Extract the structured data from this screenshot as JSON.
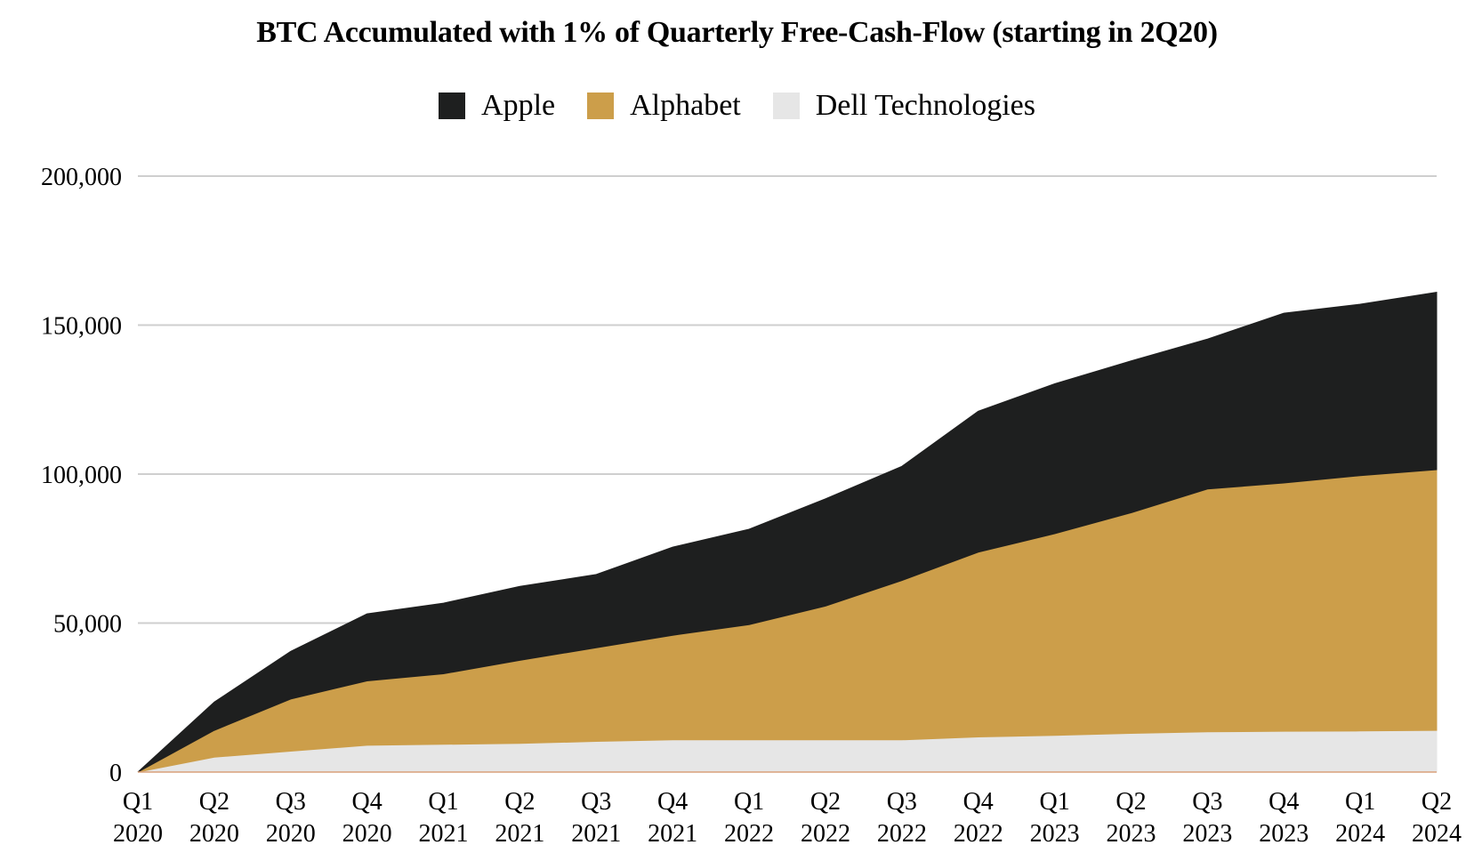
{
  "chart_data": {
    "type": "area",
    "stacked": true,
    "title": "BTC Accumulated with 1% of Quarterly Free-Cash-Flow (starting in 2Q20)",
    "xlabel": "",
    "ylabel": "",
    "ylim": [
      0,
      200000
    ],
    "yticks": [
      0,
      50000,
      100000,
      150000,
      200000
    ],
    "ytick_labels": [
      "0",
      "50,000",
      "100,000",
      "150,000",
      "200,000"
    ],
    "grid": true,
    "legend_position": "top-center",
    "categories": [
      {
        "q": "Q1",
        "year": "2020"
      },
      {
        "q": "Q2",
        "year": "2020"
      },
      {
        "q": "Q3",
        "year": "2020"
      },
      {
        "q": "Q4",
        "year": "2020"
      },
      {
        "q": "Q1",
        "year": "2021"
      },
      {
        "q": "Q2",
        "year": "2021"
      },
      {
        "q": "Q3",
        "year": "2021"
      },
      {
        "q": "Q4",
        "year": "2021"
      },
      {
        "q": "Q1",
        "year": "2022"
      },
      {
        "q": "Q2",
        "year": "2022"
      },
      {
        "q": "Q3",
        "year": "2022"
      },
      {
        "q": "Q4",
        "year": "2022"
      },
      {
        "q": "Q1",
        "year": "2023"
      },
      {
        "q": "Q2",
        "year": "2023"
      },
      {
        "q": "Q3",
        "year": "2023"
      },
      {
        "q": "Q4",
        "year": "2023"
      },
      {
        "q": "Q1",
        "year": "2024"
      },
      {
        "q": "Q2",
        "year": "2024"
      }
    ],
    "series": [
      {
        "name": "Dell Technologies",
        "color": "#e6e6e6",
        "values": [
          0,
          5000,
          7000,
          9000,
          9300,
          9600,
          10300,
          10800,
          10800,
          10800,
          10800,
          11800,
          12300,
          13000,
          13500,
          13700,
          13800,
          14000
        ]
      },
      {
        "name": "Alphabet",
        "color": "#cc9e4a",
        "values": [
          0,
          9000,
          17500,
          21600,
          23700,
          27900,
          31400,
          35100,
          38700,
          44900,
          53500,
          62000,
          67700,
          74000,
          81500,
          83300,
          85700,
          87500
        ]
      },
      {
        "name": "Apple",
        "color": "#1e1f1f",
        "values": [
          0,
          9500,
          16000,
          22500,
          23700,
          24800,
          24600,
          29600,
          32000,
          36000,
          38300,
          47300,
          50300,
          51000,
          50300,
          57000,
          57500,
          59500
        ]
      }
    ],
    "legend_order": [
      "Apple",
      "Alphabet",
      "Dell Technologies"
    ]
  }
}
